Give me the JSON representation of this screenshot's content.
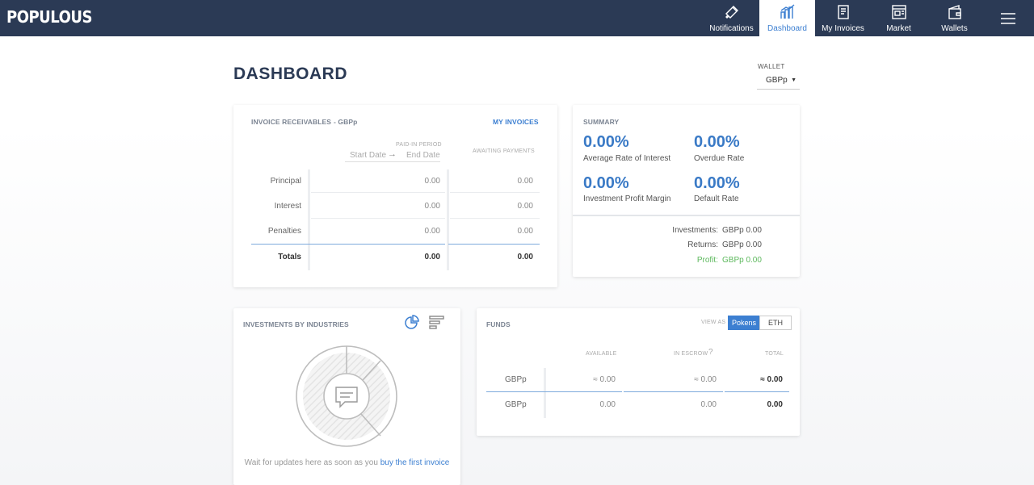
{
  "app": {
    "logo": "POPULOUS"
  },
  "nav": {
    "items": [
      {
        "label": "Notifications",
        "icon": "notifications-icon"
      },
      {
        "label": "Dashboard",
        "icon": "dashboard-icon",
        "active": true
      },
      {
        "label": "My Invoices",
        "icon": "invoice-icon"
      },
      {
        "label": "Market",
        "icon": "market-icon"
      },
      {
        "label": "Wallets",
        "icon": "wallet-icon"
      }
    ],
    "menu_icon": "hamburger-menu-icon"
  },
  "page": {
    "title": "DASHBOARD"
  },
  "wallet": {
    "label": "WALLET",
    "value": "GBPp"
  },
  "receivables": {
    "title": "INVOICE RECEIVABLES",
    "currency": "- GBPp",
    "link": "MY INVOICES",
    "period_label": "PAID-IN PERIOD",
    "start_placeholder": "Start Date",
    "end_placeholder": "End Date",
    "awaiting_label": "AWAITING PAYMENTS",
    "rows": [
      {
        "label": "Principal",
        "paid": "0.00",
        "awaiting": "0.00"
      },
      {
        "label": "Interest",
        "paid": "0.00",
        "awaiting": "0.00"
      },
      {
        "label": "Penalties",
        "paid": "0.00",
        "awaiting": "0.00"
      }
    ],
    "totals": {
      "label": "Totals",
      "paid": "0.00",
      "awaiting": "0.00"
    }
  },
  "summary": {
    "title": "SUMMARY",
    "metrics": [
      {
        "value": "0.00%",
        "label": "Average Rate of Interest"
      },
      {
        "value": "0.00%",
        "label": "Overdue Rate"
      },
      {
        "value": "0.00%",
        "label": "Investment Profit Margin"
      },
      {
        "value": "0.00%",
        "label": "Default Rate"
      }
    ],
    "investments_label": "Investments:",
    "investments_value": "GBPp 0.00",
    "returns_label": "Returns:",
    "returns_value": "GBPp 0.00",
    "profit_label": "Profit:",
    "profit_value": "GBPp 0.00",
    "profit_color": "#5cb85c"
  },
  "industries": {
    "title": "INVESTMENTS BY INDUSTRIES",
    "empty_text": "Wait for updates here as soon as you",
    "empty_link": "buy the first invoice"
  },
  "funds": {
    "title": "FUNDS",
    "view_as": "VIEW AS",
    "toggle": [
      "Pokens",
      "ETH"
    ],
    "columns": [
      "AVAILABLE",
      "IN ESCROW",
      "TOTAL"
    ],
    "escrow_help": "?",
    "rows": [
      {
        "label": "GBPp",
        "available": "≈ 0.00",
        "escrow": "≈ 0.00",
        "total": "≈ 0.00"
      },
      {
        "label": "GBPp",
        "available": "0.00",
        "escrow": "0.00",
        "total": "0.00"
      }
    ]
  },
  "colors": {
    "nav_bg": "#2b3a55",
    "accent": "#3c7fd1"
  }
}
